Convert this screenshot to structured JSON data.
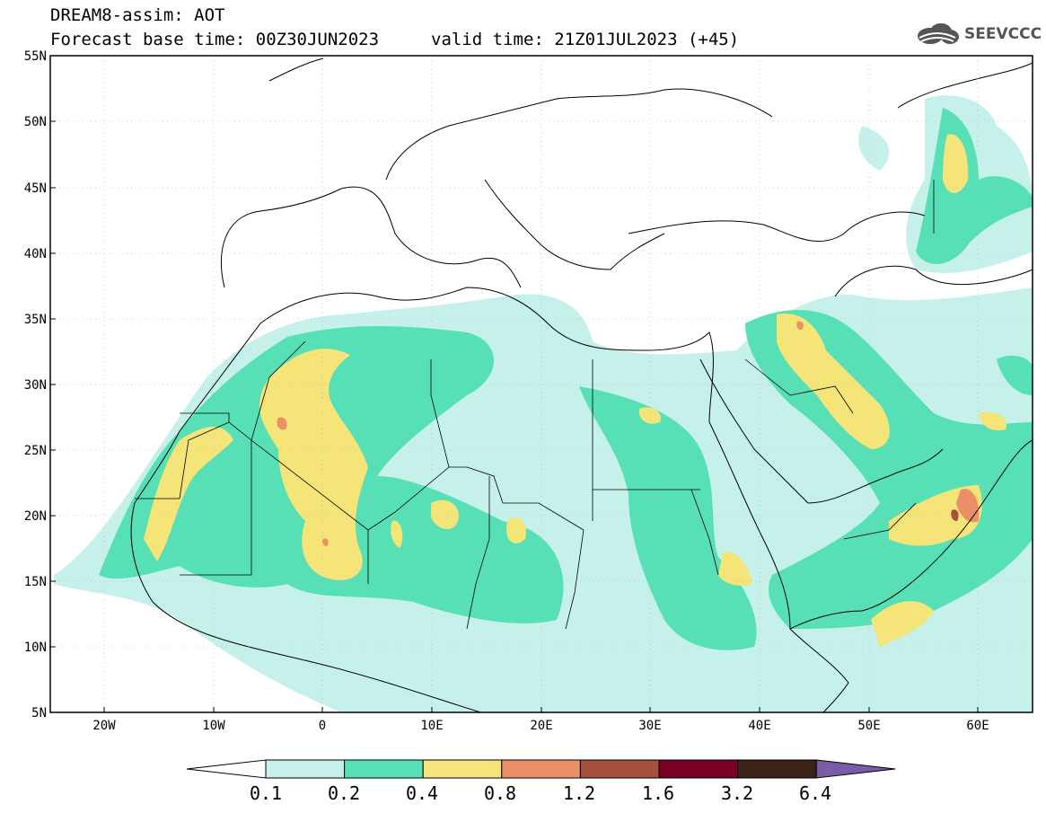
{
  "header": {
    "title": "DREAM8-assim: AOT",
    "base_time": "Forecast base time: 00Z30JUN2023",
    "valid_time": "valid time: 21Z01JUL2023 (+45)"
  },
  "logo": {
    "text": "SEEVCCC",
    "icon": "cloud-icon"
  },
  "map": {
    "lat_labels": [
      "55N",
      "50N",
      "45N",
      "40N",
      "35N",
      "30N",
      "25N",
      "20N",
      "15N",
      "10N",
      "5N"
    ],
    "lon_labels": [
      "20W",
      "10W",
      "0",
      "10E",
      "20E",
      "30E",
      "40E",
      "50E",
      "60E"
    ]
  },
  "legend": {
    "thresholds": [
      "0.1",
      "0.2",
      "0.4",
      "0.8",
      "1.2",
      "1.6",
      "3.2",
      "6.4"
    ],
    "colors": [
      "#ffffff",
      "#c6f0ea",
      "#57e0b6",
      "#f5e478",
      "#eb9066",
      "#a4503c",
      "#7a0026",
      "#3c2214",
      "#7a5ba8"
    ]
  }
}
